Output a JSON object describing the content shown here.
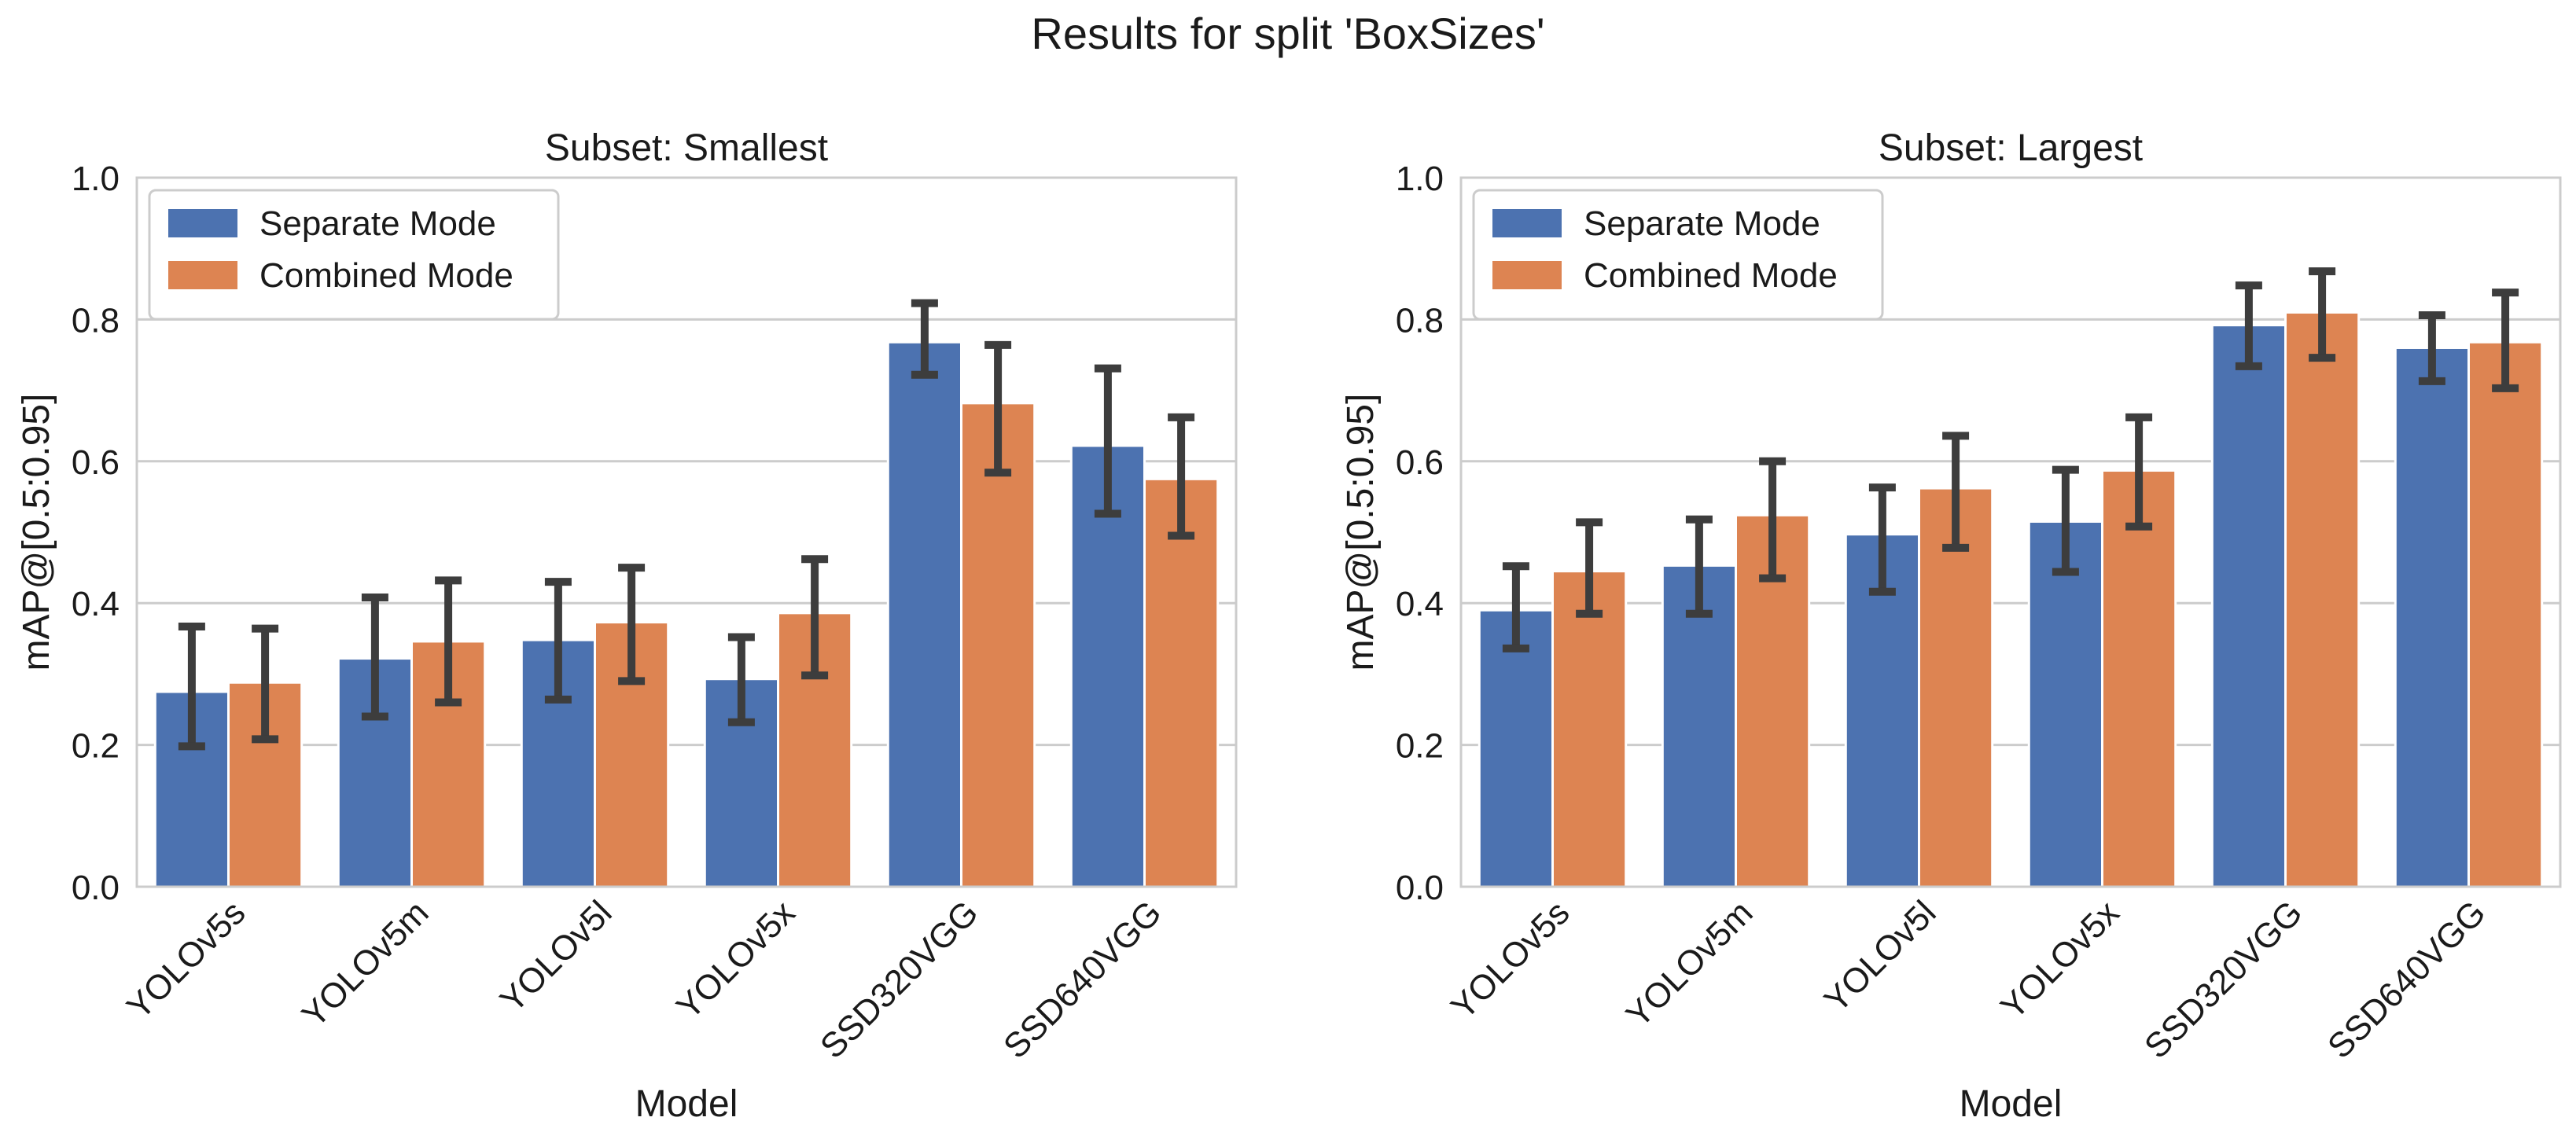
{
  "suptitle": "Results for split 'BoxSizes'",
  "chart_data": [
    {
      "type": "bar",
      "title": "Subset: Smallest",
      "xlabel": "Model",
      "ylabel": "mAP@[0.5:0.95]",
      "ylim": [
        0,
        1.0
      ],
      "yticks": [
        "0.0",
        "0.2",
        "0.4",
        "0.6",
        "0.8",
        "1.0"
      ],
      "grid": true,
      "legend_position": "top-left",
      "categories": [
        "YOLOv5s",
        "YOLOv5m",
        "YOLOv5l",
        "YOLOv5x",
        "SSD320VGG",
        "SSD640VGG"
      ],
      "series": [
        {
          "name": "Separate Mode",
          "color": "#4c72b0",
          "values": [
            0.275,
            0.322,
            0.348,
            0.293,
            0.768,
            0.622
          ],
          "err_low": [
            0.198,
            0.24,
            0.264,
            0.232,
            0.722,
            0.526
          ],
          "err_high": [
            0.367,
            0.408,
            0.43,
            0.352,
            0.823,
            0.731
          ]
        },
        {
          "name": "Combined Mode",
          "color": "#dd8452",
          "values": [
            0.288,
            0.346,
            0.373,
            0.386,
            0.682,
            0.575
          ],
          "err_low": [
            0.208,
            0.26,
            0.29,
            0.298,
            0.584,
            0.495
          ],
          "err_high": [
            0.364,
            0.432,
            0.45,
            0.462,
            0.764,
            0.662
          ]
        }
      ]
    },
    {
      "type": "bar",
      "title": "Subset: Largest",
      "xlabel": "Model",
      "ylabel": "mAP@[0.5:0.95]",
      "ylim": [
        0,
        1.0
      ],
      "yticks": [
        "0.0",
        "0.2",
        "0.4",
        "0.6",
        "0.8",
        "1.0"
      ],
      "grid": true,
      "legend_position": "top-left",
      "categories": [
        "YOLOv5s",
        "YOLOv5m",
        "YOLOv5l",
        "YOLOv5x",
        "SSD320VGG",
        "SSD640VGG"
      ],
      "series": [
        {
          "name": "Separate Mode",
          "color": "#4c72b0",
          "values": [
            0.39,
            0.453,
            0.497,
            0.515,
            0.792,
            0.76
          ],
          "err_low": [
            0.336,
            0.385,
            0.416,
            0.444,
            0.734,
            0.713
          ],
          "err_high": [
            0.452,
            0.518,
            0.563,
            0.588,
            0.848,
            0.806
          ]
        },
        {
          "name": "Combined Mode",
          "color": "#dd8452",
          "values": [
            0.445,
            0.524,
            0.562,
            0.587,
            0.81,
            0.768
          ],
          "err_low": [
            0.385,
            0.435,
            0.478,
            0.508,
            0.746,
            0.703
          ],
          "err_high": [
            0.514,
            0.6,
            0.636,
            0.662,
            0.868,
            0.838
          ]
        }
      ]
    }
  ]
}
